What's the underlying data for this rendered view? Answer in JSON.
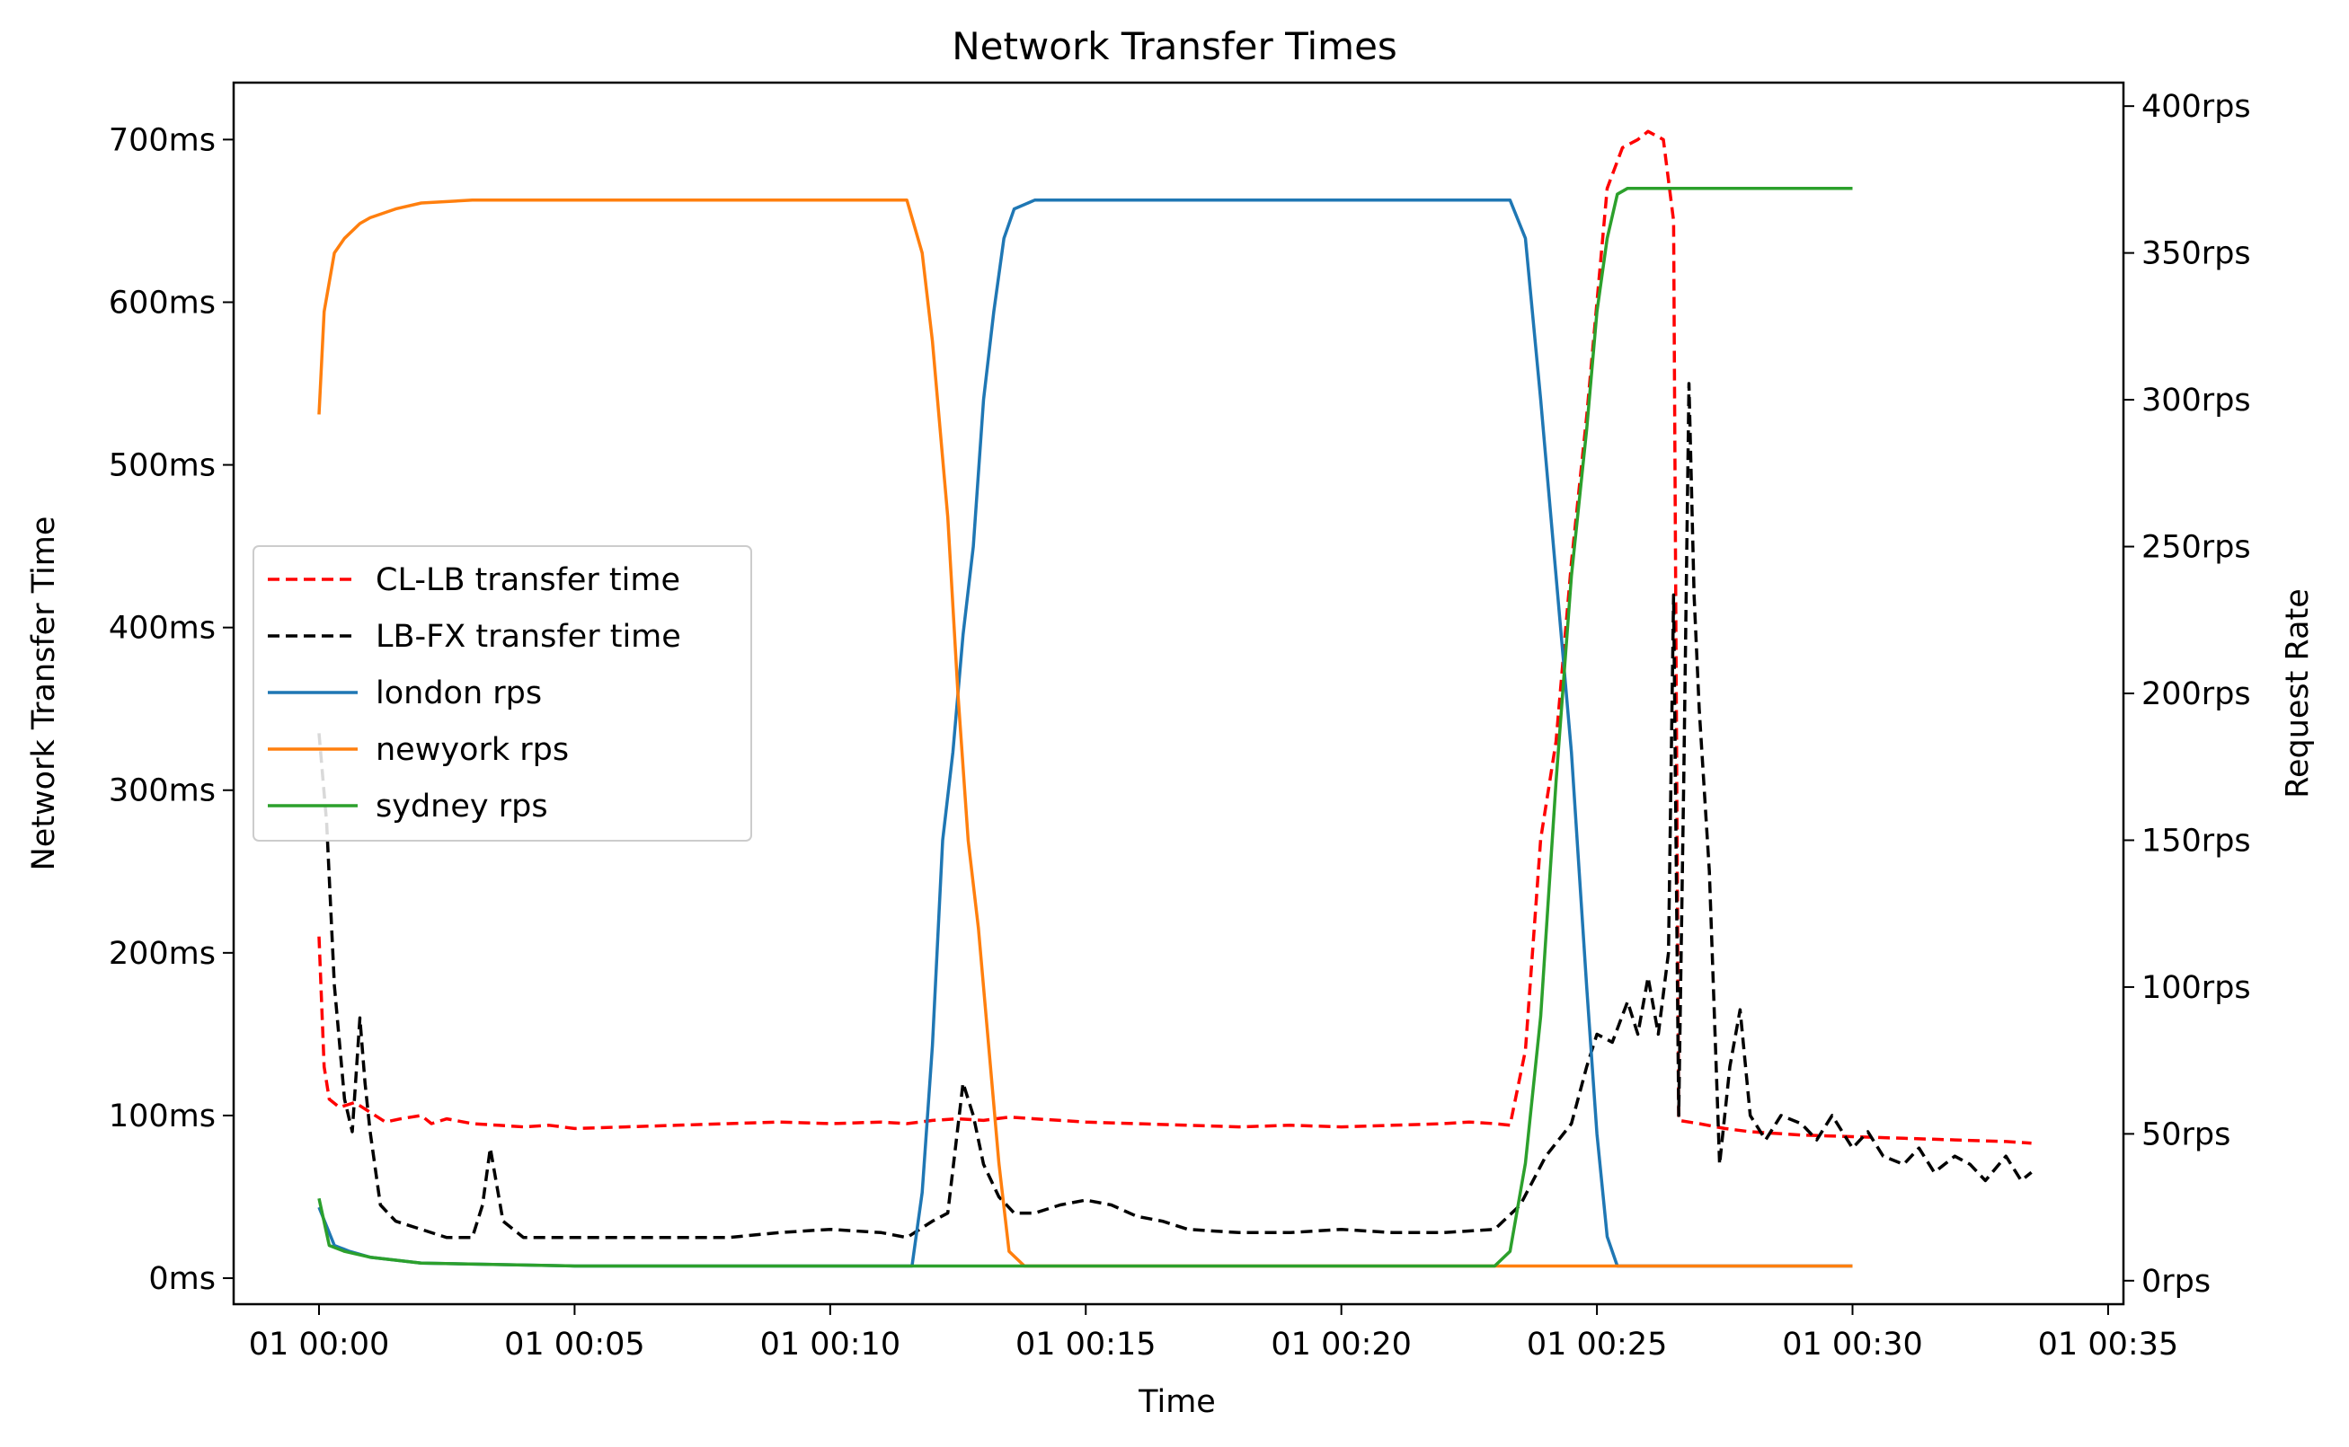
{
  "chart_data": {
    "type": "line",
    "title": "Network Transfer Times",
    "xlabel": "Time",
    "ylabel_left": "Network Transfer Time",
    "ylabel_right": "Request Rate",
    "x_unit": "minutes",
    "x_ticks": [
      0,
      5,
      10,
      15,
      20,
      25,
      30,
      35
    ],
    "x_tick_labels": [
      "01 00:00",
      "01 00:05",
      "01 00:10",
      "01 00:15",
      "01 00:20",
      "01 00:25",
      "01 00:30",
      "01 00:35"
    ],
    "xlim": [
      -1.67,
      35.3
    ],
    "y_left": {
      "ticks": [
        0,
        100,
        200,
        300,
        400,
        500,
        600,
        700
      ],
      "tick_labels": [
        "0ms",
        "100ms",
        "200ms",
        "300ms",
        "400ms",
        "500ms",
        "600ms",
        "700ms"
      ],
      "lim": [
        -16,
        735
      ]
    },
    "y_right": {
      "ticks": [
        0,
        50,
        100,
        150,
        200,
        250,
        300,
        350,
        400
      ],
      "tick_labels": [
        "0rps",
        "50rps",
        "100rps",
        "150rps",
        "200rps",
        "250rps",
        "300rps",
        "350rps",
        "400rps"
      ],
      "lim": [
        -8,
        408
      ]
    },
    "legend": {
      "placement": "center-left",
      "entries": [
        {
          "label": "CL-LB transfer time",
          "color": "#ff0000",
          "dashed": true
        },
        {
          "label": "LB-FX transfer time",
          "color": "#000000",
          "dashed": true
        },
        {
          "label": "london rps",
          "color": "#1f77b4",
          "dashed": false
        },
        {
          "label": "newyork rps",
          "color": "#ff7f0e",
          "dashed": false
        },
        {
          "label": "sydney rps",
          "color": "#2ca02c",
          "dashed": false
        }
      ]
    },
    "series": [
      {
        "name": "CL-LB transfer time",
        "axis": "left",
        "color": "#ff0000",
        "dashed": true,
        "x": [
          0,
          0.1,
          0.2,
          0.4,
          0.7,
          1.0,
          1.3,
          1.6,
          2.0,
          2.2,
          2.5,
          3.0,
          3.5,
          4.0,
          4.5,
          5.0,
          6.0,
          7.0,
          8.0,
          9.0,
          10.0,
          11.0,
          11.5,
          12.0,
          12.5,
          13.0,
          13.5,
          14.0,
          14.5,
          15.0,
          16.0,
          17.0,
          18.0,
          19.0,
          20.0,
          21.0,
          22.0,
          22.5,
          23.0,
          23.3,
          23.6,
          23.9,
          24.2,
          24.5,
          24.8,
          25.0,
          25.2,
          25.5,
          25.8,
          26.0,
          26.3,
          26.5,
          26.6,
          26.8,
          27.0,
          27.5,
          28.0,
          29.0,
          30.0,
          31.0,
          32.0,
          33.0,
          33.5
        ],
        "y": [
          210,
          130,
          110,
          105,
          108,
          102,
          96,
          98,
          100,
          95,
          98,
          95,
          94,
          93,
          94,
          92,
          93,
          94,
          95,
          96,
          95,
          96,
          95,
          97,
          98,
          97,
          99,
          98,
          97,
          96,
          95,
          94,
          93,
          94,
          93,
          94,
          95,
          96,
          95,
          94,
          140,
          270,
          330,
          440,
          530,
          600,
          670,
          695,
          700,
          705,
          700,
          650,
          97,
          96,
          95,
          92,
          90,
          88,
          87,
          86,
          85,
          84,
          83
        ]
      },
      {
        "name": "LB-FX transfer time",
        "axis": "left",
        "color": "#000000",
        "dashed": true,
        "x": [
          0,
          0.15,
          0.3,
          0.5,
          0.65,
          0.8,
          0.9,
          1.0,
          1.2,
          1.5,
          2.0,
          2.5,
          3.0,
          3.2,
          3.35,
          3.6,
          4.0,
          5.0,
          6.0,
          7.0,
          8.0,
          9.0,
          10.0,
          11.0,
          11.5,
          12.0,
          12.3,
          12.6,
          12.8,
          13.0,
          13.3,
          13.6,
          14.0,
          14.5,
          15.0,
          15.5,
          16.0,
          16.5,
          17.0,
          18.0,
          19.0,
          20.0,
          21.0,
          22.0,
          23.0,
          23.5,
          24.0,
          24.5,
          24.8,
          25.0,
          25.3,
          25.6,
          25.8,
          26.0,
          26.2,
          26.4,
          26.5,
          26.6,
          26.7,
          26.8,
          26.9,
          27.0,
          27.2,
          27.4,
          27.6,
          27.8,
          28.0,
          28.3,
          28.6,
          29.0,
          29.3,
          29.6,
          30.0,
          30.3,
          30.6,
          31.0,
          31.3,
          31.6,
          32.0,
          32.3,
          32.6,
          33.0,
          33.3,
          33.5
        ],
        "y": [
          335,
          280,
          180,
          110,
          90,
          160,
          120,
          90,
          45,
          35,
          30,
          25,
          25,
          45,
          80,
          35,
          25,
          25,
          25,
          25,
          25,
          28,
          30,
          28,
          25,
          35,
          40,
          120,
          100,
          70,
          50,
          40,
          40,
          45,
          48,
          45,
          38,
          35,
          30,
          28,
          28,
          30,
          28,
          28,
          30,
          45,
          75,
          95,
          130,
          150,
          145,
          170,
          150,
          185,
          150,
          200,
          420,
          100,
          310,
          550,
          420,
          350,
          250,
          70,
          130,
          165,
          100,
          85,
          100,
          95,
          85,
          100,
          80,
          90,
          75,
          70,
          80,
          65,
          75,
          70,
          60,
          75,
          60,
          65
        ]
      },
      {
        "name": "london rps",
        "axis": "right",
        "color": "#1f77b4",
        "dashed": false,
        "x": [
          0,
          0.3,
          0.6,
          1.0,
          2.0,
          5.0,
          8.0,
          10.0,
          11.0,
          11.6,
          11.8,
          12.0,
          12.2,
          12.4,
          12.6,
          12.8,
          13.0,
          13.2,
          13.4,
          13.6,
          14.0,
          15.0,
          17.0,
          19.0,
          21.0,
          22.5,
          23.3,
          23.6,
          23.9,
          24.2,
          24.5,
          24.8,
          25.0,
          25.2,
          25.4,
          26.0,
          27.0,
          28.0,
          29.0,
          30.0
        ],
        "y": [
          25,
          12,
          10,
          8,
          6,
          5,
          5,
          5,
          5,
          5,
          30,
          80,
          150,
          180,
          220,
          250,
          300,
          330,
          355,
          365,
          368,
          368,
          368,
          368,
          368,
          368,
          368,
          355,
          300,
          240,
          180,
          100,
          50,
          15,
          5,
          5,
          5,
          5,
          5,
          5
        ]
      },
      {
        "name": "newyork rps",
        "axis": "right",
        "color": "#ff7f0e",
        "dashed": false,
        "x": [
          0,
          0.1,
          0.3,
          0.5,
          0.8,
          1.0,
          1.5,
          2.0,
          3.0,
          5.0,
          7.0,
          9.0,
          10.5,
          11.5,
          11.8,
          12.0,
          12.3,
          12.5,
          12.7,
          12.9,
          13.1,
          13.3,
          13.5,
          13.8,
          14.0,
          15.0,
          18.0,
          21.0,
          23.0,
          24.0,
          25.0,
          26.0,
          27.0,
          28.0,
          29.0,
          30.0
        ],
        "y": [
          295,
          330,
          350,
          355,
          360,
          362,
          365,
          367,
          368,
          368,
          368,
          368,
          368,
          368,
          350,
          320,
          260,
          200,
          150,
          120,
          80,
          40,
          10,
          5,
          5,
          5,
          5,
          5,
          5,
          5,
          5,
          5,
          5,
          5,
          5,
          5
        ]
      },
      {
        "name": "sydney rps",
        "axis": "right",
        "color": "#2ca02c",
        "dashed": false,
        "x": [
          0,
          0.2,
          0.5,
          1.0,
          2.0,
          5.0,
          10.0,
          15.0,
          20.0,
          23.0,
          23.3,
          23.6,
          23.9,
          24.2,
          24.5,
          24.8,
          25.0,
          25.2,
          25.4,
          25.6,
          26.0,
          26.5,
          27.0,
          28.0,
          29.0,
          29.8,
          30.0
        ],
        "y": [
          28,
          12,
          10,
          8,
          6,
          5,
          5,
          5,
          5,
          5,
          10,
          40,
          90,
          170,
          240,
          290,
          330,
          355,
          370,
          372,
          372,
          372,
          372,
          372,
          372,
          372,
          372
        ]
      }
    ]
  }
}
